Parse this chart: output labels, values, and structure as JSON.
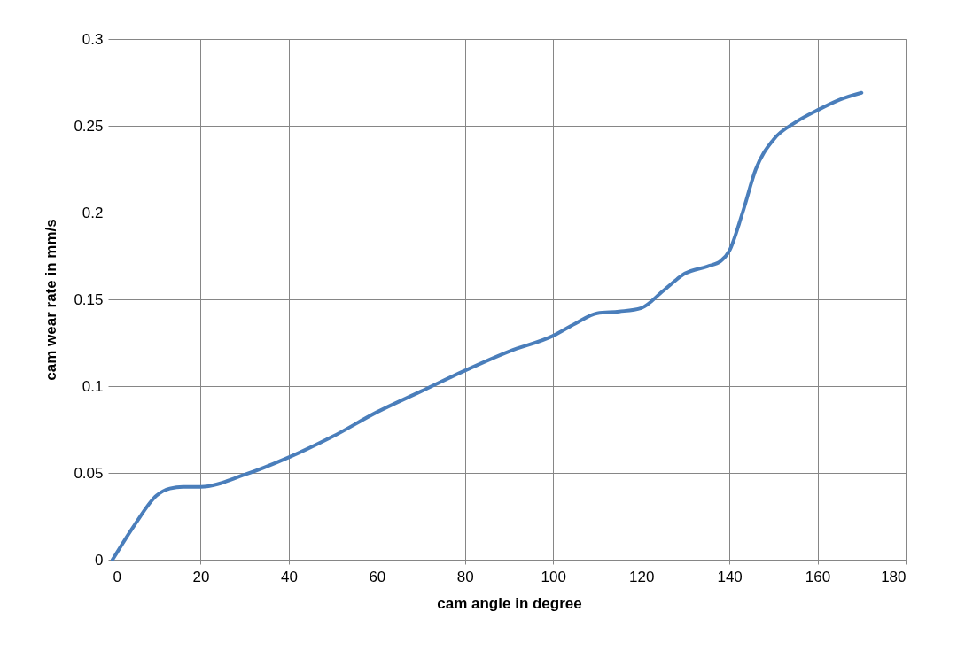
{
  "chart_data": {
    "type": "line",
    "xlabel": "cam angle in degree",
    "ylabel": "cam wear rate in mm/s",
    "x": [
      0,
      5,
      10,
      13,
      16,
      20,
      30,
      40,
      50,
      60,
      70,
      80,
      90,
      100,
      105,
      110,
      115,
      120,
      125,
      130,
      135,
      138,
      140,
      143,
      146,
      150,
      155,
      160,
      165,
      170
    ],
    "series": [
      {
        "color": "#4a7ebb",
        "values": [
          0,
          0.02,
          0.037,
          0.041,
          0.042,
          0.042,
          0.049,
          0.059,
          0.071,
          0.085,
          0.097,
          0.109,
          0.12,
          0.129,
          0.136,
          0.142,
          0.143,
          0.145,
          0.155,
          0.165,
          0.169,
          0.172,
          0.178,
          0.2,
          0.225,
          0.242,
          0.252,
          0.259,
          0.265,
          0.269
        ]
      }
    ],
    "xlim": [
      0,
      180
    ],
    "xticks": [
      0,
      20,
      40,
      60,
      80,
      100,
      120,
      140,
      160,
      180
    ],
    "ylim": [
      0,
      0.3
    ],
    "yticks": [
      0,
      0.05,
      0.1,
      0.15,
      0.2,
      0.25,
      0.3
    ],
    "grid": true,
    "marker": "none",
    "line_style": "solid"
  }
}
